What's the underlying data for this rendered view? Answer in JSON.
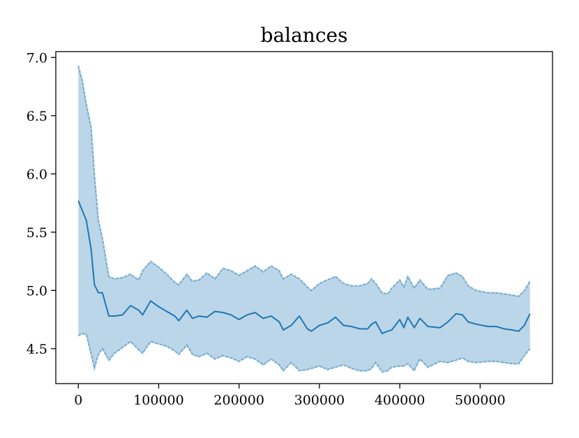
{
  "chart_data": {
    "type": "line",
    "title": "balances",
    "xlabel": "",
    "ylabel": "",
    "xlim": [
      -28000,
      590000
    ],
    "ylim": [
      4.2,
      7.05
    ],
    "grid": false,
    "legend": "none",
    "x_ticks": [
      0,
      100000,
      200000,
      300000,
      400000,
      500000
    ],
    "x_tick_labels": [
      "0",
      "100000",
      "200000",
      "300000",
      "400000",
      "500000"
    ],
    "y_ticks": [
      4.5,
      5.0,
      5.5,
      6.0,
      6.5,
      7.0
    ],
    "y_tick_labels": [
      "4.5",
      "5.0",
      "5.5",
      "6.0",
      "6.5",
      "7.0"
    ],
    "colors": {
      "line": "#1f77b4",
      "band_fill": "#1f77b4",
      "band_fill_opacity": 0.3,
      "band_edge": "#1f77b4",
      "band_edge_opacity": 0.5
    },
    "series": [
      {
        "x": [
          0,
          10000,
          16000,
          20000,
          25000,
          30000,
          38000,
          45000,
          55000,
          65000,
          75000,
          80000,
          90000,
          100000,
          110000,
          120000,
          125000,
          135000,
          142000,
          150000,
          160000,
          170000,
          180000,
          190000,
          200000,
          210000,
          220000,
          230000,
          240000,
          250000,
          255000,
          265000,
          275000,
          285000,
          290000,
          300000,
          310000,
          320000,
          330000,
          340000,
          350000,
          360000,
          365000,
          370000,
          378000,
          385000,
          390000,
          400000,
          405000,
          410000,
          418000,
          425000,
          435000,
          450000,
          460000,
          470000,
          478000,
          485000,
          495000,
          510000,
          520000,
          530000,
          540000,
          548000,
          555000,
          562000
        ],
        "values": [
          5.77,
          5.6,
          5.35,
          5.05,
          4.98,
          4.98,
          4.78,
          4.78,
          4.79,
          4.87,
          4.83,
          4.79,
          4.91,
          4.86,
          4.82,
          4.78,
          4.74,
          4.83,
          4.76,
          4.78,
          4.77,
          4.82,
          4.81,
          4.79,
          4.75,
          4.79,
          4.81,
          4.76,
          4.78,
          4.73,
          4.66,
          4.7,
          4.78,
          4.67,
          4.65,
          4.7,
          4.72,
          4.77,
          4.7,
          4.69,
          4.67,
          4.67,
          4.71,
          4.73,
          4.63,
          4.65,
          4.66,
          4.75,
          4.68,
          4.77,
          4.68,
          4.76,
          4.69,
          4.68,
          4.73,
          4.8,
          4.79,
          4.73,
          4.71,
          4.69,
          4.69,
          4.67,
          4.66,
          4.65,
          4.7,
          4.8
        ]
      },
      {
        "x": [
          0,
          5000,
          10000,
          16000,
          20000,
          25000,
          30000,
          38000,
          45000,
          55000,
          65000,
          75000,
          80000,
          90000,
          100000,
          110000,
          120000,
          125000,
          135000,
          142000,
          150000,
          160000,
          170000,
          180000,
          190000,
          200000,
          210000,
          220000,
          230000,
          240000,
          250000,
          255000,
          265000,
          275000,
          285000,
          290000,
          300000,
          310000,
          320000,
          330000,
          340000,
          350000,
          360000,
          365000,
          370000,
          378000,
          385000,
          390000,
          400000,
          405000,
          410000,
          418000,
          425000,
          435000,
          450000,
          460000,
          470000,
          478000,
          485000,
          495000,
          510000,
          520000,
          530000,
          540000,
          548000,
          555000,
          562000
        ],
        "values": [
          6.93,
          6.8,
          6.6,
          6.4,
          6.0,
          5.6,
          5.45,
          5.12,
          5.1,
          5.11,
          5.14,
          5.09,
          5.17,
          5.25,
          5.2,
          5.14,
          5.07,
          5.05,
          5.14,
          5.08,
          5.09,
          5.15,
          5.1,
          5.19,
          5.17,
          5.13,
          5.17,
          5.21,
          5.16,
          5.21,
          5.17,
          5.1,
          5.14,
          5.1,
          5.03,
          5.0,
          5.06,
          5.09,
          5.12,
          5.06,
          5.04,
          5.04,
          5.06,
          5.1,
          5.06,
          4.98,
          4.97,
          5.02,
          5.09,
          5.03,
          5.12,
          5.02,
          5.09,
          5.01,
          5.02,
          5.13,
          5.15,
          5.12,
          5.04,
          5.0,
          4.98,
          4.98,
          4.97,
          4.96,
          4.95,
          5.0,
          5.08
        ]
      },
      {
        "x": [
          0,
          5000,
          10000,
          16000,
          20000,
          25000,
          30000,
          38000,
          45000,
          55000,
          65000,
          75000,
          80000,
          90000,
          100000,
          110000,
          120000,
          125000,
          135000,
          142000,
          150000,
          160000,
          170000,
          180000,
          190000,
          200000,
          210000,
          220000,
          230000,
          240000,
          250000,
          255000,
          265000,
          275000,
          285000,
          290000,
          300000,
          310000,
          320000,
          330000,
          340000,
          350000,
          360000,
          365000,
          370000,
          378000,
          385000,
          390000,
          400000,
          405000,
          410000,
          418000,
          425000,
          435000,
          450000,
          460000,
          470000,
          478000,
          485000,
          495000,
          510000,
          520000,
          530000,
          540000,
          548000,
          555000,
          562000
        ],
        "values": [
          4.61,
          4.63,
          4.62,
          4.45,
          4.33,
          4.45,
          4.5,
          4.4,
          4.46,
          4.51,
          4.56,
          4.49,
          4.46,
          4.56,
          4.54,
          4.52,
          4.48,
          4.45,
          4.53,
          4.45,
          4.43,
          4.46,
          4.41,
          4.44,
          4.42,
          4.39,
          4.43,
          4.41,
          4.36,
          4.41,
          4.36,
          4.31,
          4.38,
          4.31,
          4.32,
          4.33,
          4.35,
          4.32,
          4.34,
          4.36,
          4.33,
          4.31,
          4.31,
          4.33,
          4.38,
          4.3,
          4.31,
          4.34,
          4.35,
          4.35,
          4.37,
          4.31,
          4.41,
          4.34,
          4.39,
          4.38,
          4.4,
          4.42,
          4.39,
          4.38,
          4.39,
          4.39,
          4.38,
          4.37,
          4.37,
          4.44,
          4.5
        ]
      }
    ]
  }
}
